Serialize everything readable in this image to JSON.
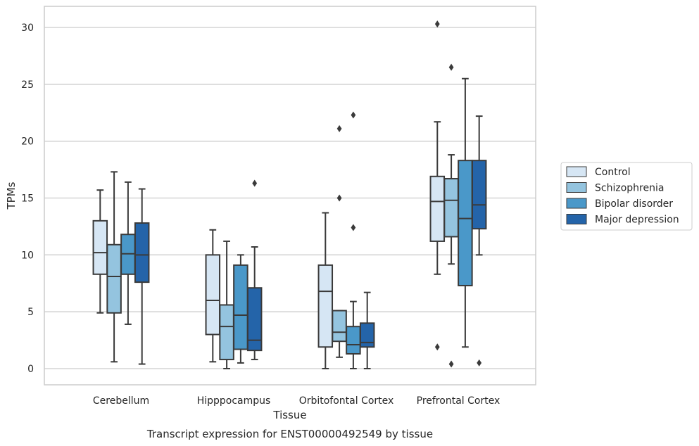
{
  "chart_data": {
    "type": "box",
    "caption": "Transcript expression for ENST00000492549 by tissue",
    "xlabel": "Tissue",
    "ylabel": "TPMs",
    "ylim": [
      -1.5,
      32
    ],
    "yticks": [
      0,
      5,
      10,
      15,
      20,
      25,
      30
    ],
    "grid": true,
    "legend_position": "right",
    "categories": [
      "Cerebellum",
      "Hipppocampus",
      "Orbitofontal Cortex",
      "Prefrontal Cortex"
    ],
    "series": [
      {
        "name": "Control",
        "color": "#d6e6f4",
        "boxes": [
          {
            "whislo": 4.9,
            "q1": 8.3,
            "med": 10.2,
            "q3": 13.0,
            "whishi": 15.7,
            "fliers": []
          },
          {
            "whislo": 0.6,
            "q1": 3.0,
            "med": 6.0,
            "q3": 10.0,
            "whishi": 12.2,
            "fliers": []
          },
          {
            "whislo": 0.0,
            "q1": 1.9,
            "med": 6.8,
            "q3": 9.1,
            "whishi": 13.7,
            "fliers": []
          },
          {
            "whislo": 8.3,
            "q1": 11.2,
            "med": 14.7,
            "q3": 16.9,
            "whishi": 21.7,
            "fliers": [
              1.9,
              30.3
            ]
          }
        ]
      },
      {
        "name": "Schizophrenia",
        "color": "#94c4df",
        "boxes": [
          {
            "whislo": 0.6,
            "q1": 4.9,
            "med": 8.1,
            "q3": 10.9,
            "whishi": 17.3,
            "fliers": []
          },
          {
            "whislo": 0.0,
            "q1": 0.8,
            "med": 3.7,
            "q3": 5.6,
            "whishi": 11.2,
            "fliers": []
          },
          {
            "whislo": 1.0,
            "q1": 2.4,
            "med": 3.2,
            "q3": 5.1,
            "whishi": 5.1,
            "fliers": [
              15.0,
              21.1
            ]
          },
          {
            "whislo": 9.2,
            "q1": 11.6,
            "med": 14.8,
            "q3": 16.7,
            "whishi": 18.8,
            "fliers": [
              0.4,
              26.5
            ]
          }
        ]
      },
      {
        "name": "Bipolar disorder",
        "color": "#4a98c9",
        "boxes": [
          {
            "whislo": 3.9,
            "q1": 8.3,
            "med": 10.1,
            "q3": 11.8,
            "whishi": 16.4,
            "fliers": []
          },
          {
            "whislo": 0.5,
            "q1": 1.7,
            "med": 4.7,
            "q3": 9.1,
            "whishi": 10.0,
            "fliers": []
          },
          {
            "whislo": 0.0,
            "q1": 1.3,
            "med": 2.1,
            "q3": 3.7,
            "whishi": 5.9,
            "fliers": [
              12.4,
              22.3
            ]
          },
          {
            "whislo": 1.9,
            "q1": 7.3,
            "med": 13.2,
            "q3": 18.3,
            "whishi": 25.5,
            "fliers": []
          }
        ]
      },
      {
        "name": "Major depression",
        "color": "#2464a9",
        "boxes": [
          {
            "whislo": 0.4,
            "q1": 7.6,
            "med": 10.0,
            "q3": 12.8,
            "whishi": 15.8,
            "fliers": []
          },
          {
            "whislo": 0.8,
            "q1": 1.6,
            "med": 2.5,
            "q3": 7.1,
            "whishi": 10.7,
            "fliers": [
              16.3
            ]
          },
          {
            "whislo": 0.0,
            "q1": 1.9,
            "med": 2.3,
            "q3": 4.0,
            "whishi": 6.7,
            "fliers": []
          },
          {
            "whislo": 10.0,
            "q1": 12.3,
            "med": 14.4,
            "q3": 18.3,
            "whishi": 22.2,
            "fliers": [
              0.5
            ]
          }
        ]
      }
    ]
  }
}
